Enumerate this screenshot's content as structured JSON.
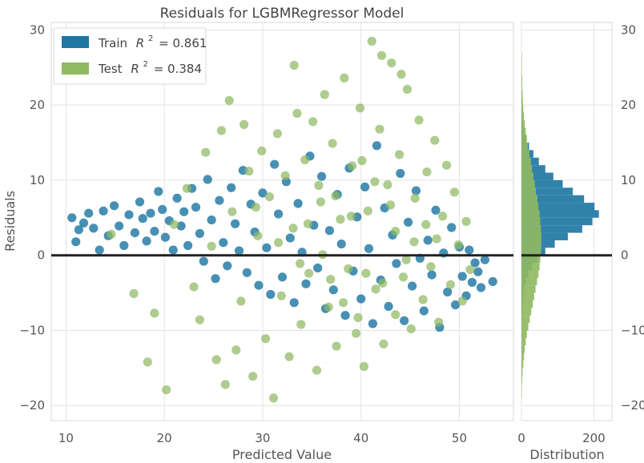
{
  "chart_data": {
    "type": "scatter",
    "title": "Residuals for LGBMRegressor Model",
    "xlabel": "Predicted Value",
    "ylabel": "Residuals",
    "xlim": [
      8.5,
      55.5
    ],
    "ylim": [
      -22,
      31
    ],
    "xticks": [
      "10",
      "20",
      "30",
      "40",
      "50"
    ],
    "yticks": [
      "−20",
      "−10",
      "0",
      "10",
      "20",
      "30"
    ],
    "zero_line": 0,
    "grid": true,
    "legend_position": "top-left",
    "series": [
      {
        "name": "Train",
        "legend_label": "Train R² = 0.861",
        "r2_label": "R",
        "r2_value": "= 0.861",
        "color": "#1f77a4",
        "points": [
          [
            10.6,
            5.0
          ],
          [
            11.0,
            1.8
          ],
          [
            11.3,
            3.4
          ],
          [
            11.8,
            4.3
          ],
          [
            12.3,
            5.6
          ],
          [
            12.8,
            3.6
          ],
          [
            13.4,
            0.7
          ],
          [
            13.8,
            5.9
          ],
          [
            14.3,
            2.6
          ],
          [
            14.9,
            6.6
          ],
          [
            15.4,
            3.9
          ],
          [
            15.9,
            1.3
          ],
          [
            16.4,
            5.4
          ],
          [
            17.0,
            3.0
          ],
          [
            17.5,
            7.1
          ],
          [
            17.8,
            4.9
          ],
          [
            18.2,
            1.9
          ],
          [
            18.6,
            5.6
          ],
          [
            19.0,
            3.2
          ],
          [
            19.4,
            8.5
          ],
          [
            19.8,
            6.1
          ],
          [
            20.1,
            2.4
          ],
          [
            20.5,
            4.6
          ],
          [
            20.9,
            0.7
          ],
          [
            21.3,
            7.6
          ],
          [
            21.7,
            3.9
          ],
          [
            22.0,
            5.8
          ],
          [
            22.4,
            1.3
          ],
          [
            22.8,
            8.9
          ],
          [
            23.2,
            6.4
          ],
          [
            23.6,
            2.9
          ],
          [
            24.0,
            -0.8
          ],
          [
            24.4,
            10.1
          ],
          [
            24.8,
            4.7
          ],
          [
            25.2,
            -3.1
          ],
          [
            25.6,
            7.3
          ],
          [
            26.0,
            1.7
          ],
          [
            26.4,
            -1.4
          ],
          [
            26.8,
            9.0
          ],
          [
            27.2,
            4.2
          ],
          [
            27.6,
            0.6
          ],
          [
            28.0,
            11.3
          ],
          [
            28.4,
            -2.3
          ],
          [
            28.8,
            6.8
          ],
          [
            29.2,
            3.1
          ],
          [
            29.6,
            -4.0
          ],
          [
            30.0,
            8.3
          ],
          [
            30.4,
            1.0
          ],
          [
            30.8,
            -5.2
          ],
          [
            31.2,
            12.1
          ],
          [
            31.6,
            5.5
          ],
          [
            32.0,
            -2.9
          ],
          [
            32.4,
            9.8
          ],
          [
            32.8,
            2.3
          ],
          [
            33.2,
            -6.3
          ],
          [
            33.6,
            6.9
          ],
          [
            34.0,
            0.4
          ],
          [
            34.4,
            -3.8
          ],
          [
            34.8,
            13.2
          ],
          [
            35.2,
            4.0
          ],
          [
            35.6,
            -1.7
          ],
          [
            36.0,
            10.5
          ],
          [
            36.4,
            -7.1
          ],
          [
            36.8,
            3.3
          ],
          [
            37.2,
            -4.6
          ],
          [
            37.6,
            8.1
          ],
          [
            38.0,
            1.5
          ],
          [
            38.4,
            -8.0
          ],
          [
            38.8,
            11.6
          ],
          [
            39.2,
            -2.1
          ],
          [
            39.6,
            5.1
          ],
          [
            40.0,
            -5.8
          ],
          [
            40.4,
            9.1
          ],
          [
            40.8,
            0.9
          ],
          [
            41.2,
            -9.1
          ],
          [
            41.6,
            14.6
          ],
          [
            42.0,
            -3.3
          ],
          [
            42.4,
            6.3
          ],
          [
            42.8,
            -6.8
          ],
          [
            43.2,
            2.7
          ],
          [
            43.6,
            -1.1
          ],
          [
            44.0,
            10.9
          ],
          [
            44.4,
            -8.7
          ],
          [
            44.8,
            4.4
          ],
          [
            45.2,
            -4.1
          ],
          [
            45.6,
            8.6
          ],
          [
            46.0,
            -0.4
          ],
          [
            46.4,
            -7.4
          ],
          [
            46.8,
            2.0
          ],
          [
            47.2,
            -2.6
          ],
          [
            47.6,
            6.0
          ],
          [
            48.0,
            -9.6
          ],
          [
            48.4,
            0.3
          ],
          [
            48.8,
            -4.9
          ],
          [
            49.2,
            3.7
          ],
          [
            49.6,
            -6.6
          ],
          [
            50.0,
            1.1
          ],
          [
            50.3,
            -2.8
          ],
          [
            50.7,
            -5.4
          ],
          [
            51.0,
            0.7
          ],
          [
            51.3,
            -3.6
          ],
          [
            51.6,
            -1.0
          ],
          [
            51.9,
            -2.2
          ],
          [
            52.2,
            -4.3
          ],
          [
            52.6,
            -0.6
          ],
          [
            53.4,
            -3.5
          ]
        ]
      },
      {
        "name": "Test",
        "legend_label": "Test R² = 0.384",
        "r2_label": "R",
        "r2_value": "= 0.384",
        "color": "#8fb962",
        "points": [
          [
            14.6,
            2.8
          ],
          [
            16.9,
            -5.1
          ],
          [
            18.3,
            -14.2
          ],
          [
            19.0,
            -7.7
          ],
          [
            20.2,
            -17.9
          ],
          [
            21.0,
            4.1
          ],
          [
            22.3,
            8.9
          ],
          [
            23.0,
            -4.2
          ],
          [
            23.6,
            -8.6
          ],
          [
            24.2,
            13.7
          ],
          [
            24.8,
            1.2
          ],
          [
            25.3,
            -13.9
          ],
          [
            25.8,
            16.6
          ],
          [
            26.2,
            -17.2
          ],
          [
            26.6,
            20.6
          ],
          [
            26.9,
            5.8
          ],
          [
            27.3,
            -12.6
          ],
          [
            27.8,
            -6.1
          ],
          [
            28.1,
            17.4
          ],
          [
            28.6,
            11.2
          ],
          [
            29.0,
            -16.1
          ],
          [
            29.5,
            2.6
          ],
          [
            29.9,
            13.9
          ],
          [
            30.3,
            -11.1
          ],
          [
            30.7,
            7.8
          ],
          [
            31.1,
            -19.0
          ],
          [
            31.5,
            16.2
          ],
          [
            31.9,
            -5.4
          ],
          [
            32.3,
            10.6
          ],
          [
            32.7,
            -13.5
          ],
          [
            33.1,
            3.6
          ],
          [
            33.5,
            18.9
          ],
          [
            33.9,
            -9.2
          ],
          [
            34.3,
            12.7
          ],
          [
            34.7,
            -2.4
          ],
          [
            35.1,
            17.8
          ],
          [
            35.5,
            -15.3
          ],
          [
            35.9,
            7.1
          ],
          [
            36.3,
            21.4
          ],
          [
            36.7,
            -6.9
          ],
          [
            37.1,
            14.9
          ],
          [
            37.5,
            -12.1
          ],
          [
            37.9,
            4.8
          ],
          [
            38.3,
            23.6
          ],
          [
            38.7,
            -1.8
          ],
          [
            39.1,
            11.9
          ],
          [
            39.5,
            -10.4
          ],
          [
            39.9,
            19.6
          ],
          [
            40.3,
            -14.8
          ],
          [
            40.7,
            5.9
          ],
          [
            41.1,
            28.5
          ],
          [
            41.5,
            -4.5
          ],
          [
            41.9,
            16.8
          ],
          [
            42.3,
            -11.8
          ],
          [
            42.7,
            9.4
          ],
          [
            43.1,
            25.6
          ],
          [
            43.5,
            -7.9
          ],
          [
            43.9,
            13.4
          ],
          [
            44.3,
            -2.9
          ],
          [
            44.7,
            22.1
          ],
          [
            45.1,
            -9.8
          ],
          [
            45.5,
            7.6
          ],
          [
            45.9,
            18.0
          ],
          [
            46.3,
            -5.9
          ],
          [
            46.7,
            11.1
          ],
          [
            47.1,
            -1.5
          ],
          [
            47.5,
            15.3
          ],
          [
            47.9,
            -8.9
          ],
          [
            48.3,
            5.2
          ],
          [
            48.7,
            12.0
          ],
          [
            49.1,
            -3.9
          ],
          [
            49.5,
            8.4
          ],
          [
            49.9,
            1.4
          ],
          [
            50.3,
            -6.1
          ],
          [
            50.7,
            4.5
          ],
          [
            51.1,
            -1.9
          ],
          [
            33.2,
            25.3
          ],
          [
            42.1,
            26.6
          ],
          [
            44.1,
            24.1
          ],
          [
            39.0,
            5.2
          ],
          [
            36.1,
            0.1
          ],
          [
            40.5,
            -2.4
          ],
          [
            43.5,
            3.2
          ],
          [
            37.4,
            7.9
          ],
          [
            41.4,
            9.8
          ],
          [
            34.6,
            4.2
          ],
          [
            45.4,
            1.8
          ],
          [
            38.2,
            -6.3
          ],
          [
            42.2,
            -3.7
          ],
          [
            35.7,
            9.3
          ],
          [
            44.6,
            -0.6
          ],
          [
            31.6,
            1.7
          ],
          [
            29.3,
            6.4
          ],
          [
            46.6,
            4.1
          ],
          [
            40.1,
            12.6
          ],
          [
            36.9,
            -3.2
          ],
          [
            43.0,
            6.7
          ],
          [
            33.8,
            -1.1
          ],
          [
            47.7,
            2.2
          ],
          [
            39.7,
            -8.3
          ]
        ]
      }
    ],
    "histogram": {
      "xlabel": "Distribution",
      "xticks": [
        "0",
        "200"
      ],
      "xlim": [
        0,
        250
      ],
      "bins_low": -22,
      "bin_width": 1,
      "train_counts": [
        0,
        0,
        0,
        0,
        0,
        0,
        0,
        0,
        0,
        0,
        0,
        0,
        0,
        1,
        2,
        3,
        5,
        7,
        12,
        19,
        30,
        45,
        66,
        92,
        128,
        168,
        196,
        214,
        202,
        173,
        142,
        114,
        88,
        66,
        48,
        33,
        21,
        13,
        7,
        4,
        2,
        1,
        0,
        0,
        0,
        0,
        0,
        0,
        0,
        0,
        0,
        0,
        0
      ],
      "test_counts": [
        0,
        0,
        0,
        1,
        1,
        2,
        3,
        5,
        7,
        9,
        12,
        15,
        19,
        23,
        27,
        31,
        35,
        39,
        43,
        47,
        50,
        52,
        54,
        55,
        55,
        54,
        52,
        50,
        47,
        44,
        40,
        37,
        33,
        29,
        26,
        22,
        18,
        15,
        12,
        9,
        7,
        5,
        4,
        3,
        2,
        2,
        1,
        1,
        1,
        0,
        0,
        0,
        0
      ]
    }
  }
}
